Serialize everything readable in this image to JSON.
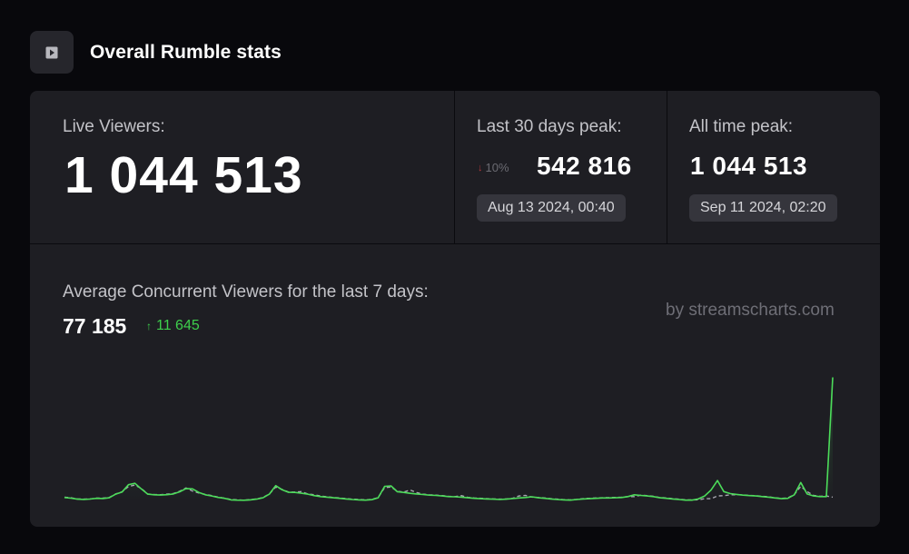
{
  "page": {
    "title": "Overall Rumble stats",
    "icon": "play-square-icon"
  },
  "live": {
    "label": "Live Viewers:",
    "value": "1 044 513"
  },
  "last30": {
    "label": "Last 30 days peak:",
    "change": "10%",
    "change_direction": "down",
    "value": "542 816",
    "date": "Aug 13 2024, 00:40"
  },
  "alltime": {
    "label": "All time peak:",
    "value": "1 044 513",
    "date": "Sep 11 2024, 02:20"
  },
  "average": {
    "label": "Average Concurrent Viewers for the last 7 days:",
    "value": "77 185",
    "change": "11 645",
    "change_direction": "up"
  },
  "watermark": "by streamscharts.com",
  "colors": {
    "background": "#08080c",
    "card": "#1e1e23",
    "accent_up": "#3ecf4c",
    "accent_down": "#b0393c",
    "current_line": "#4cdc5a",
    "previous_line": "#a7a7b0"
  },
  "chart_data": {
    "type": "line",
    "title": "",
    "xlabel": "",
    "ylabel": "",
    "ylim": [
      0,
      1100000
    ],
    "x": [
      0,
      1,
      2,
      3,
      4,
      5,
      6,
      7,
      8,
      9,
      10,
      11,
      12,
      13,
      14,
      15,
      16,
      17,
      18,
      19,
      20,
      21,
      22,
      23,
      24,
      25,
      26,
      27,
      28,
      29,
      30,
      31,
      32,
      33,
      34,
      35,
      36,
      37,
      38,
      39,
      40,
      41,
      42,
      43,
      44,
      45,
      46,
      47,
      48,
      49,
      50,
      51,
      52,
      53,
      54,
      55,
      56,
      57,
      58,
      59,
      60,
      61,
      62,
      63,
      64,
      65,
      66,
      67,
      68,
      69,
      70,
      71,
      72,
      73,
      74,
      75,
      76,
      77,
      78,
      79,
      80,
      81,
      82,
      83,
      84,
      85,
      86,
      87,
      88,
      89,
      90,
      91,
      92,
      93,
      94,
      95,
      96,
      97,
      98,
      99,
      100,
      101,
      102,
      103,
      104,
      105,
      106,
      107,
      108,
      109,
      110,
      111,
      112,
      113,
      114,
      115,
      116,
      117,
      118,
      119,
      120
    ],
    "series": [
      {
        "values": [
          32000,
          27000,
          18000,
          16000,
          19000,
          25000,
          24000,
          30000,
          60000,
          78000,
          140000,
          152000,
          105000,
          60000,
          55000,
          53000,
          56000,
          62000,
          80000,
          108000,
          105000,
          75000,
          55000,
          45000,
          33000,
          25000,
          12000,
          10000,
          9000,
          12000,
          18000,
          30000,
          60000,
          132000,
          97000,
          76000,
          75000,
          68000,
          60000,
          48000,
          40000,
          35000,
          30000,
          25000,
          20000,
          15000,
          12000,
          10000,
          14000,
          30000,
          125000,
          130000,
          80000,
          75000,
          67000,
          62000,
          57000,
          52000,
          50000,
          45000,
          40000,
          38000,
          35000,
          30000,
          25000,
          22000,
          20000,
          18000,
          15000,
          18000,
          23000,
          28000,
          32000,
          38000,
          30000,
          25000,
          20000,
          15000,
          12000,
          10000,
          15000,
          20000,
          22000,
          25000,
          28000,
          28000,
          30000,
          32000,
          40000,
          55000,
          50000,
          45000,
          40000,
          30000,
          25000,
          20000,
          15000,
          10000,
          10000,
          20000,
          45000,
          95000,
          175000,
          82000,
          65000,
          58000,
          52000,
          48000,
          45000,
          40000,
          35000,
          28000,
          22000,
          25000,
          55000,
          158000,
          62000,
          45000,
          40000,
          40000,
          1043000
        ]
      },
      {
        "values": [
          35000,
          30000,
          20000,
          18000,
          20000,
          27000,
          27000,
          32000,
          62000,
          80000,
          125000,
          137000,
          108000,
          62000,
          57000,
          56000,
          60000,
          65000,
          85000,
          112000,
          86000,
          70000,
          58000,
          48000,
          35000,
          27000,
          15000,
          12000,
          10000,
          14000,
          20000,
          32000,
          62000,
          120000,
          100000,
          78000,
          78000,
          82000,
          62000,
          55000,
          45000,
          38000,
          32000,
          28000,
          22000,
          18000,
          15000,
          12000,
          16000,
          32000,
          115000,
          120000,
          85000,
          78000,
          95000,
          74000,
          60000,
          55000,
          52000,
          48000,
          42000,
          40000,
          48000,
          33000,
          28000,
          25000,
          22000,
          20000,
          18000,
          20000,
          25000,
          45000,
          50000,
          36000,
          32000,
          28000,
          22000,
          18000,
          14000,
          12000,
          16000,
          22000,
          25000,
          28000,
          30000,
          31000,
          33000,
          34000,
          40000,
          40000,
          52000,
          48000,
          42000,
          32000,
          28000,
          22000,
          18000,
          12000,
          12000,
          13000,
          22000,
          22000,
          45000,
          48000,
          54000,
          56000,
          54000,
          50000,
          47000,
          42000,
          38000,
          30000,
          25000,
          28000,
          58000,
          125000,
          82000,
          50000,
          42000,
          45000,
          35000
        ]
      }
    ]
  }
}
